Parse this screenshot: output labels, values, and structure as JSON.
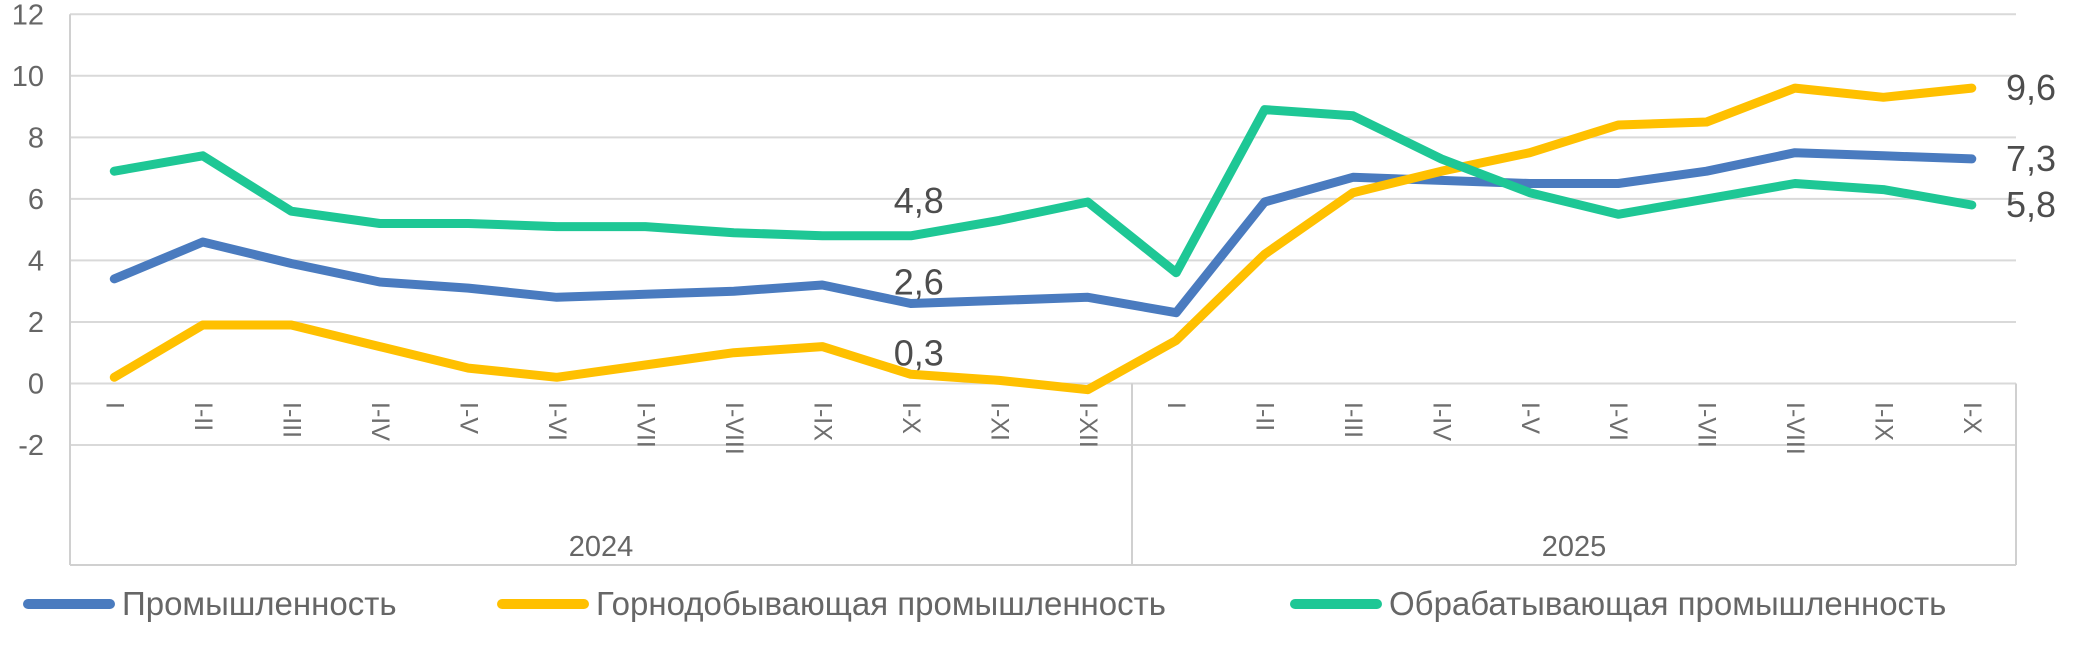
{
  "chart_data": {
    "type": "line",
    "ylim": [
      -2,
      12
    ],
    "y_ticks": [
      12,
      10,
      8,
      6,
      4,
      2,
      0,
      -2
    ],
    "grid": true,
    "legend_position": "bottom",
    "group_labels": [
      "2024",
      "2025"
    ],
    "categories_2024": [
      "I",
      "I-II",
      "I-III",
      "I-IV",
      "I-V",
      "I-VI",
      "I-VII",
      "I-VIII",
      "I-IX",
      "I-X",
      "I-XI",
      "I-XII"
    ],
    "categories_2025": [
      "I",
      "I-II",
      "I-III",
      "I-IV",
      "I-V",
      "I-VI",
      "I-VII",
      "I-VIII",
      "I-IX",
      "I-X"
    ],
    "labeled_category_2024": "I-X",
    "series": [
      {
        "name": "Промышленность",
        "color": "#4a7bbf",
        "values_2024": [
          3.4,
          4.6,
          3.9,
          3.3,
          3.1,
          2.8,
          2.9,
          3.0,
          3.2,
          2.6,
          2.7,
          2.8
        ],
        "values_2025": [
          2.3,
          5.9,
          6.7,
          6.6,
          6.5,
          6.5,
          6.9,
          7.5,
          7.4,
          7.3
        ],
        "mid_label": "2,6",
        "end_label": "7,3"
      },
      {
        "name": "Горнодобывающая промышленность",
        "color": "#ffc000",
        "values_2024": [
          0.2,
          1.9,
          1.9,
          1.2,
          0.5,
          0.2,
          0.6,
          1.0,
          1.2,
          0.3,
          0.1,
          -0.2
        ],
        "values_2025": [
          1.4,
          4.2,
          6.2,
          6.9,
          7.5,
          8.4,
          8.5,
          9.6,
          9.3,
          9.6
        ],
        "mid_label": "0,3",
        "end_label": "9,6"
      },
      {
        "name": "Обрабатывающая промышленность",
        "color": "#1ec795",
        "values_2024": [
          6.9,
          7.4,
          5.6,
          5.2,
          5.2,
          5.1,
          5.1,
          4.9,
          4.8,
          4.8,
          5.3,
          5.9
        ],
        "values_2025": [
          3.6,
          8.9,
          8.7,
          7.3,
          6.2,
          5.5,
          6.0,
          6.5,
          6.3,
          5.8
        ],
        "mid_label": "4,8",
        "end_label": "5,8"
      }
    ]
  },
  "legend": {
    "items": [
      "Промышленность",
      "Горнодобывающая промышленность",
      "Обрабатывающая промышленность"
    ]
  }
}
